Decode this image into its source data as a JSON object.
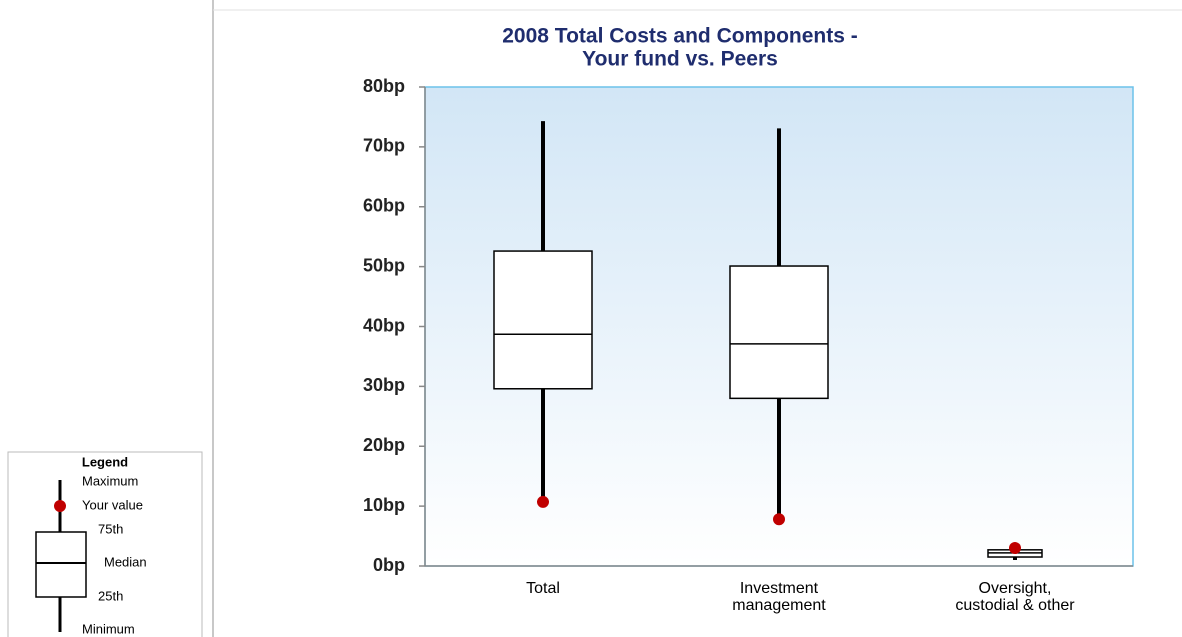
{
  "chart_data": {
    "type": "box",
    "title": [
      "2008 Total Costs and Components -",
      "Your fund vs. Peers"
    ],
    "categories": [
      "Total",
      "Investment management",
      "Oversight, custodial & other"
    ],
    "min": [
      10.7,
      7.8,
      1.0
    ],
    "q1": [
      29.6,
      28.0,
      1.5
    ],
    "median": [
      38.7,
      37.1,
      2.2
    ],
    "q3": [
      52.6,
      50.1,
      2.7
    ],
    "max": [
      74.3,
      73.1,
      3.7
    ],
    "your_value": [
      10.7,
      7.8,
      3.0
    ],
    "box_color": "#ffffff",
    "line_color": "#000000",
    "dot_color": "#c00000",
    "ylim": [
      0,
      80
    ],
    "yticks": [
      {
        "value": 0,
        "label": "0bp"
      },
      {
        "value": 10,
        "label": "10bp"
      },
      {
        "value": 20,
        "label": "20bp"
      },
      {
        "value": 30,
        "label": "30bp"
      },
      {
        "value": 40,
        "label": "40bp"
      },
      {
        "value": 50,
        "label": "50bp"
      },
      {
        "value": 60,
        "label": "60bp"
      },
      {
        "value": 70,
        "label": "70bp"
      },
      {
        "value": 80,
        "label": "80bp"
      }
    ],
    "legend": {
      "title": "Legend",
      "labels": [
        "Maximum",
        "Your value",
        "75th",
        "Median",
        "25th",
        "Minimum"
      ]
    }
  }
}
